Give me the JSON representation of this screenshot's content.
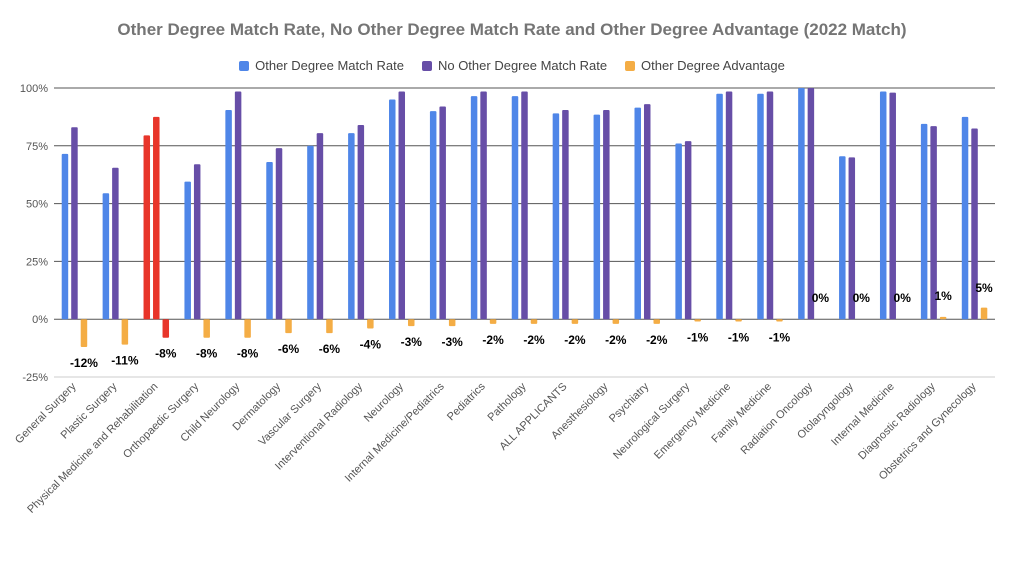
{
  "chart_data": {
    "type": "bar",
    "title": "Other Degree Match Rate, No Other Degree Match Rate and Other Degree Advantage (2022 Match)",
    "ylim": [
      -25,
      100
    ],
    "yticks": [
      "100%",
      "75%",
      "50%",
      "25%",
      "0%",
      "-25%"
    ],
    "yticks_values": [
      100,
      75,
      50,
      25,
      0,
      -25
    ],
    "grid": true,
    "legend_position": "top",
    "categories": [
      "General Surgery",
      "Plastic Surgery",
      "Physical Medicine and Rehabilitation",
      "Orthopaedic Surgery",
      "Child Neurology",
      "Dermatology",
      "Vascular Surgery",
      "Interventional Radiology",
      "Neurology",
      "Internal Medicine/Pediatrics",
      "Pediatrics",
      "Pathology",
      "ALL APPLICANTS",
      "Anesthesiology",
      "Psychiatry",
      "Neurological Surgery",
      "Emergency Medicine",
      "Family Medicine",
      "Radiation Oncology",
      "Otolaryngology",
      "Internal Medicine",
      "Diagnostic Radiology",
      "Obstetrics and Gynecology"
    ],
    "series": [
      {
        "name": "Other Degree Match Rate",
        "color": "#4f86e8",
        "values": [
          71.5,
          54.5,
          79.5,
          59.5,
          90.5,
          68,
          75,
          80.5,
          95,
          90,
          96.5,
          96.5,
          89,
          88.5,
          91.5,
          76,
          97.5,
          97.5,
          100,
          70.5,
          98.5,
          84.5,
          87.5
        ]
      },
      {
        "name": "No Other Degree Match Rate",
        "color": "#674ea7",
        "values": [
          83,
          65.5,
          87.5,
          67,
          98.5,
          74,
          80.5,
          84,
          98.5,
          92,
          98.5,
          98.5,
          90.5,
          90.5,
          93,
          77,
          98.5,
          98.5,
          100,
          70,
          98,
          83.5,
          82.5
        ]
      },
      {
        "name": "Other Degree Advantage",
        "color": "#f4ad45",
        "values": [
          -12,
          -11,
          -8,
          -8,
          -8,
          -6,
          -6,
          -4,
          -3,
          -3,
          -2,
          -2,
          -2,
          -2,
          -2,
          -1,
          -1,
          -1,
          0,
          0,
          0,
          1,
          5
        ],
        "labels": [
          "-12%",
          "-11%",
          "-8%",
          "-8%",
          "-8%",
          "-6%",
          "-6%",
          "-4%",
          "-3%",
          "-3%",
          "-2%",
          "-2%",
          "-2%",
          "-2%",
          "-2%",
          "-1%",
          "-1%",
          "-1%",
          "0%",
          "0%",
          "0%",
          "1%",
          "5%"
        ]
      }
    ],
    "highlight": {
      "category": "Physical Medicine and Rehabilitation",
      "color": "#e8352a"
    }
  }
}
